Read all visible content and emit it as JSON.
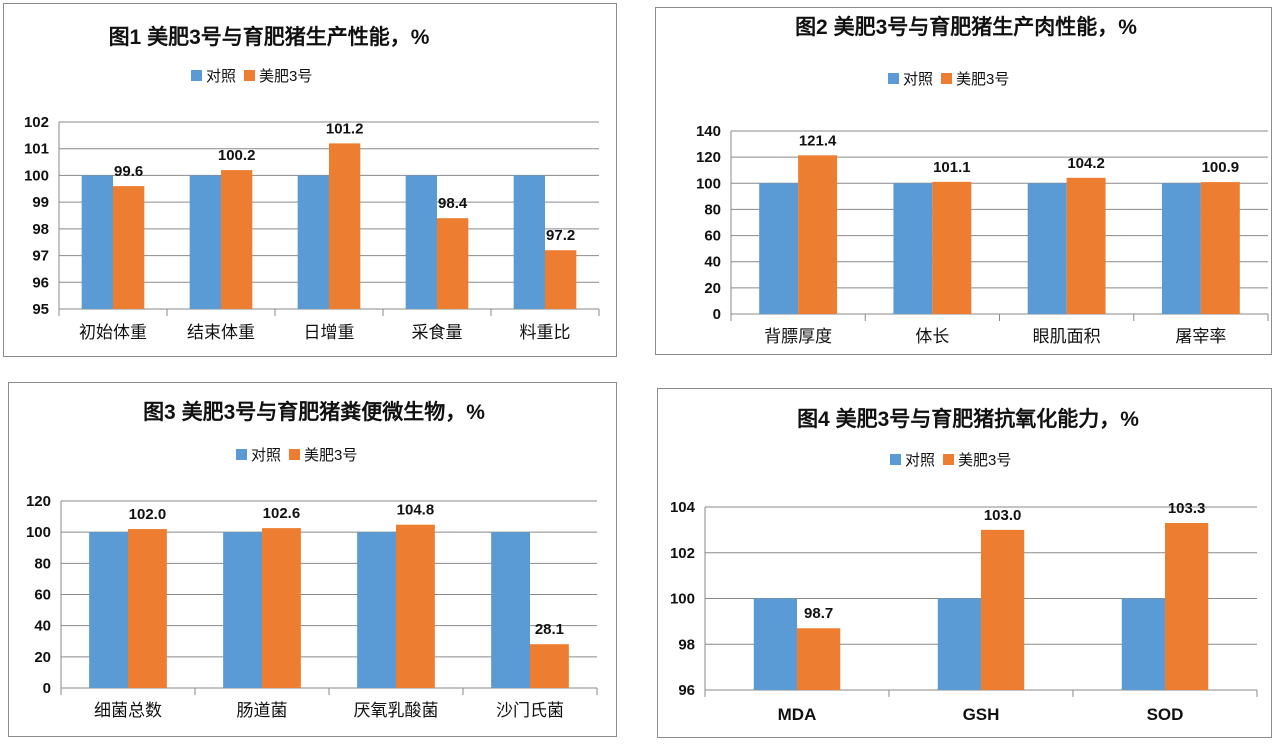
{
  "chart_data": [
    {
      "type": "bar",
      "title": "图1 美肥3号与育肥猪生产性能，%",
      "categories": [
        "初始体重",
        "结束体重",
        "日增重",
        "采食量",
        "料重比"
      ],
      "series": [
        {
          "name": "对照",
          "color": "#5b9bd5",
          "values": [
            100,
            100,
            100,
            100,
            100
          ]
        },
        {
          "name": "美肥3号",
          "color": "#ed7d31",
          "values": [
            99.6,
            100.2,
            101.2,
            98.4,
            97.2
          ]
        }
      ],
      "data_labels": [
        "99.6",
        "100.2",
        "101.2",
        "98.4",
        "97.2"
      ],
      "ylim": [
        95,
        102
      ],
      "yticks": [
        "95",
        "96",
        "97",
        "98",
        "99",
        "100",
        "101",
        "102"
      ],
      "ytick_values": [
        95,
        96,
        97,
        98,
        99,
        100,
        101,
        102
      ],
      "legend": "top",
      "grid": true
    },
    {
      "type": "bar",
      "title": "图2 美肥3号与育肥猪生产肉性能，%",
      "categories": [
        "背膘厚度",
        "体长",
        "眼肌面积",
        "屠宰率"
      ],
      "series": [
        {
          "name": "对照",
          "color": "#5b9bd5",
          "values": [
            100,
            100,
            100,
            100
          ]
        },
        {
          "name": "美肥3号",
          "color": "#ed7d31",
          "values": [
            121.4,
            101.1,
            104.2,
            100.9
          ]
        }
      ],
      "data_labels": [
        "121.4",
        "101.1",
        "104.2",
        "100.9"
      ],
      "ylim": [
        0,
        140
      ],
      "yticks": [
        "0",
        "20",
        "40",
        "60",
        "80",
        "100",
        "120",
        "140"
      ],
      "ytick_values": [
        0,
        20,
        40,
        60,
        80,
        100,
        120,
        140
      ],
      "legend": "top",
      "grid": true
    },
    {
      "type": "bar",
      "title": "图3 美肥3号与育肥猪粪便微生物，%",
      "categories": [
        "细菌总数",
        "肠道菌",
        "厌氧乳酸菌",
        "沙门氏菌"
      ],
      "series": [
        {
          "name": "对照",
          "color": "#5b9bd5",
          "values": [
            100,
            100,
            100,
            100
          ]
        },
        {
          "name": "美肥3号",
          "color": "#ed7d31",
          "values": [
            102.0,
            102.6,
            104.8,
            28.1
          ]
        }
      ],
      "data_labels": [
        "102.0",
        "102.6",
        "104.8",
        "28.1"
      ],
      "ylim": [
        0,
        120
      ],
      "yticks": [
        "0",
        "20",
        "40",
        "60",
        "80",
        "100",
        "120"
      ],
      "ytick_values": [
        0,
        20,
        40,
        60,
        80,
        100,
        120
      ],
      "legend": "top",
      "grid": true
    },
    {
      "type": "bar",
      "title": "图4 美肥3号与育肥猪抗氧化能力，%",
      "categories": [
        "MDA",
        "GSH",
        "SOD"
      ],
      "series": [
        {
          "name": "对照",
          "color": "#5b9bd5",
          "values": [
            100,
            100,
            100
          ]
        },
        {
          "name": "美肥3号",
          "color": "#ed7d31",
          "values": [
            98.7,
            103.0,
            103.3
          ]
        }
      ],
      "data_labels": [
        "98.7",
        "103.0",
        "103.3"
      ],
      "ylim": [
        96,
        104
      ],
      "yticks": [
        "96",
        "98",
        "100",
        "102",
        "104"
      ],
      "ytick_values": [
        96,
        98,
        100,
        102,
        104
      ],
      "legend": "top",
      "grid": true
    }
  ]
}
